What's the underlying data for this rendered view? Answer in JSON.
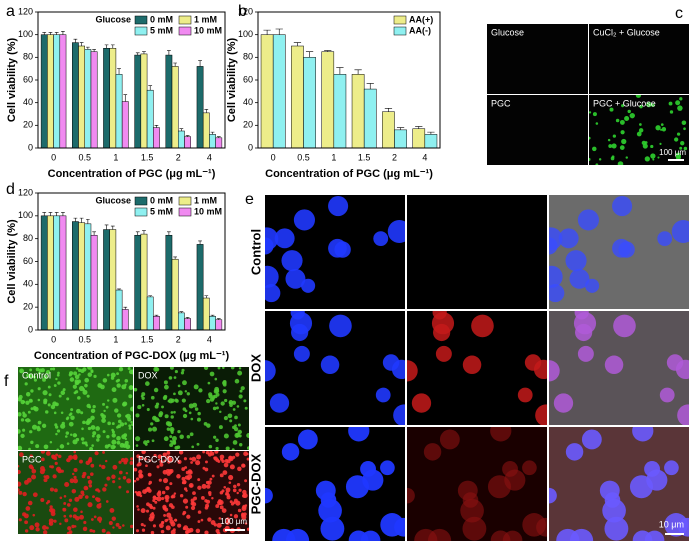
{
  "chart_data": [
    {
      "type": "bar",
      "categories": [
        "0",
        "0.5",
        "1",
        "1.5",
        "2",
        "4"
      ],
      "x_label": "Concentration of PGC (μg mL⁻¹)",
      "y_label": "Cell viability (%)",
      "ylim": [
        0,
        120
      ],
      "yticks": [
        0,
        20,
        40,
        60,
        80,
        100,
        120
      ],
      "legend_title": "Glucose",
      "legend": "upper right",
      "series": [
        {
          "name": "0 mM",
          "color": "#1d6b6b",
          "values": [
            100,
            93,
            88,
            82,
            82,
            72
          ],
          "errors": [
            2,
            3,
            3,
            2,
            4,
            5
          ]
        },
        {
          "name": "1 mM",
          "color": "#eded8a",
          "values": [
            100,
            90,
            88,
            83,
            72,
            31
          ],
          "errors": [
            2,
            3,
            3,
            2,
            3,
            3
          ]
        },
        {
          "name": "5 mM",
          "color": "#8ff0f0",
          "values": [
            100,
            87,
            65,
            51,
            15,
            12
          ],
          "errors": [
            2,
            2,
            5,
            4,
            2,
            2
          ]
        },
        {
          "name": "10 mM",
          "color": "#f08af0",
          "values": [
            100,
            85,
            41,
            18,
            10,
            9
          ],
          "errors": [
            3,
            2,
            6,
            2,
            1,
            1
          ]
        }
      ]
    },
    {
      "type": "bar",
      "categories": [
        "0",
        "0.5",
        "1",
        "1.5",
        "2",
        "4"
      ],
      "x_label": "Concentration of PGC (μg mL⁻¹)",
      "y_label": "Cell viability (%)",
      "ylim": [
        0,
        120
      ],
      "yticks": [
        0,
        20,
        40,
        60,
        80,
        100,
        120
      ],
      "legend": "upper right",
      "series": [
        {
          "name": "AA(+)",
          "color": "#eded8a",
          "values": [
            100,
            90,
            85,
            65,
            32,
            17
          ],
          "errors": [
            4,
            3,
            1,
            4,
            3,
            2
          ]
        },
        {
          "name": "AA(-)",
          "color": "#8ff0f0",
          "values": [
            100,
            80,
            65,
            52,
            16,
            12
          ],
          "errors": [
            5,
            5,
            6,
            5,
            2,
            2
          ]
        }
      ]
    },
    {
      "type": "bar",
      "categories": [
        "0",
        "0.5",
        "1",
        "1.5",
        "2",
        "4"
      ],
      "x_label": "Concentration of PGC-DOX (μg mL⁻¹)",
      "y_label": "Cell viability (%)",
      "ylim": [
        0,
        120
      ],
      "yticks": [
        0,
        20,
        40,
        60,
        80,
        100,
        120
      ],
      "legend_title": "Glucose",
      "legend": "upper right",
      "series": [
        {
          "name": "0 mM",
          "color": "#1d6b6b",
          "values": [
            100,
            95,
            88,
            83,
            83,
            75
          ],
          "errors": [
            3,
            3,
            4,
            3,
            3,
            3
          ]
        },
        {
          "name": "1 mM",
          "color": "#eded8a",
          "values": [
            100,
            94,
            88,
            84,
            62,
            28
          ],
          "errors": [
            3,
            4,
            3,
            3,
            2,
            2
          ]
        },
        {
          "name": "5 mM",
          "color": "#8ff0f0",
          "values": [
            100,
            93,
            35,
            29,
            15,
            12
          ],
          "errors": [
            3,
            4,
            1,
            1,
            1,
            1
          ]
        },
        {
          "name": "10 mM",
          "color": "#f08af0",
          "values": [
            100,
            83,
            18,
            12,
            10,
            9
          ],
          "errors": [
            3,
            3,
            2,
            1,
            1,
            1
          ]
        }
      ]
    }
  ],
  "panel_labels": [
    "a",
    "b",
    "c",
    "d",
    "e",
    "f"
  ],
  "panel_c": {
    "labels": [
      "Glucose",
      "CuCl₂ + Glucose",
      "PGC",
      "PGC + Glucose"
    ],
    "scale_bar": "100 μm"
  },
  "panel_e": {
    "rows": [
      "Control",
      "DOX",
      "PGC-DOX"
    ],
    "scale_bar": "10 μm"
  },
  "panel_f": {
    "labels": [
      "Control",
      "DOX",
      "PGC",
      "PGC-DOX"
    ],
    "scale_bar": "100 μm"
  }
}
